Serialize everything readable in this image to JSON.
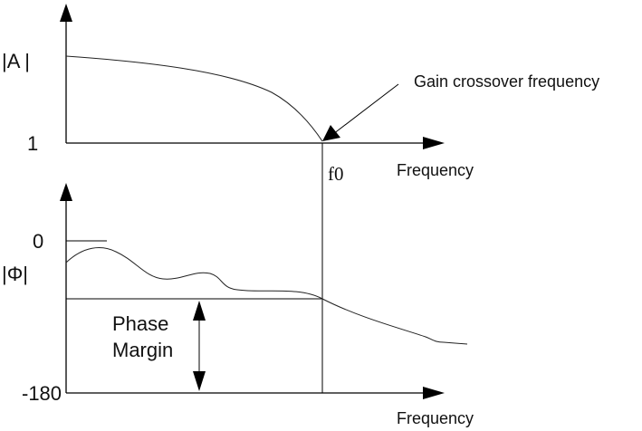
{
  "magnitude_plot": {
    "y_label": "|A |",
    "tick_label": "1",
    "x_label": "Frequency"
  },
  "phase_plot": {
    "y_label": "|Φ|",
    "tick_top": "0",
    "tick_bottom": "-180",
    "x_label": "Frequency"
  },
  "annotations": {
    "crossover": "Gain crossover frequency",
    "crossover_freq": "f0",
    "phase_margin_line1": "Phase",
    "phase_margin_line2": "Margin"
  }
}
